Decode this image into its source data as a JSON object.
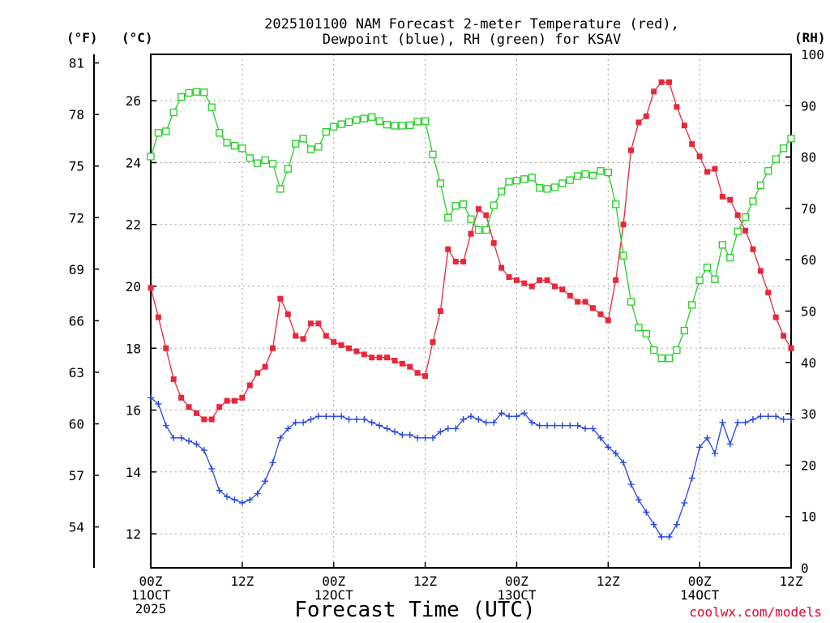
{
  "chart_data": {
    "type": "line",
    "title_lines": [
      "2025101100 NAM Forecast 2-meter Temperature (red),",
      "Dewpoint (blue), RH (green) for KSAV"
    ],
    "xlabel": "Forecast Time (UTC)",
    "credit": "coolwx.com/models",
    "units": {
      "fahrenheit": "(°F)",
      "celsius": "(°C)",
      "rh": "(RH)"
    },
    "x_range_hours": [
      0,
      84
    ],
    "x_ticks": [
      {
        "hour": 0,
        "lines": [
          "00Z",
          "11OCT",
          "2025"
        ]
      },
      {
        "hour": 12,
        "lines": [
          "12Z"
        ]
      },
      {
        "hour": 24,
        "lines": [
          "00Z",
          "12OCT"
        ]
      },
      {
        "hour": 36,
        "lines": [
          "12Z"
        ]
      },
      {
        "hour": 48,
        "lines": [
          "00Z",
          "13OCT"
        ]
      },
      {
        "hour": 60,
        "lines": [
          "12Z"
        ]
      },
      {
        "hour": 72,
        "lines": [
          "00Z",
          "14OCT"
        ]
      },
      {
        "hour": 84,
        "lines": [
          "12Z"
        ]
      }
    ],
    "celsius_range": [
      10.9,
      27.5
    ],
    "celsius_ticks": [
      12,
      14,
      16,
      18,
      20,
      22,
      24,
      26
    ],
    "fahrenheit_ticks": [
      54,
      57,
      60,
      63,
      66,
      69,
      72,
      75,
      78,
      81
    ],
    "rh_range": [
      0,
      100
    ],
    "rh_ticks": [
      0,
      10,
      20,
      30,
      40,
      50,
      60,
      70,
      80,
      90,
      100
    ],
    "series": [
      {
        "name": "Temperature",
        "unit": "C",
        "color": "#e8283a",
        "marker": "filled-square",
        "values": [
          19.95,
          19.0,
          18.0,
          17.0,
          16.4,
          16.1,
          15.9,
          15.7,
          15.7,
          16.1,
          16.3,
          16.3,
          16.4,
          16.8,
          17.2,
          17.4,
          18.0,
          19.6,
          19.1,
          18.4,
          18.3,
          18.8,
          18.8,
          18.4,
          18.2,
          18.1,
          18.0,
          17.9,
          17.8,
          17.7,
          17.7,
          17.7,
          17.6,
          17.5,
          17.4,
          17.2,
          17.1,
          18.2,
          19.2,
          21.2,
          20.8,
          20.8,
          21.7,
          22.5,
          22.3,
          21.4,
          20.6,
          20.3,
          20.2,
          20.1,
          20.0,
          20.2,
          20.2,
          20.0,
          19.9,
          19.7,
          19.5,
          19.5,
          19.3,
          19.1,
          18.9,
          20.2,
          22.0,
          24.4,
          25.3,
          25.5,
          26.3,
          26.6,
          26.6,
          25.8,
          25.2,
          24.6,
          24.2,
          23.7,
          23.8,
          22.9,
          22.8,
          22.3,
          21.8,
          21.2,
          20.5,
          19.8,
          19.0,
          18.4,
          18.0
        ]
      },
      {
        "name": "Dewpoint",
        "unit": "C",
        "color": "#2848e0",
        "marker": "plus",
        "values": [
          16.4,
          16.2,
          15.5,
          15.1,
          15.1,
          15.0,
          14.9,
          14.7,
          14.1,
          13.4,
          13.2,
          13.1,
          13.0,
          13.1,
          13.3,
          13.7,
          14.3,
          15.1,
          15.4,
          15.6,
          15.6,
          15.7,
          15.8,
          15.8,
          15.8,
          15.8,
          15.7,
          15.7,
          15.7,
          15.6,
          15.5,
          15.4,
          15.3,
          15.2,
          15.2,
          15.1,
          15.1,
          15.1,
          15.3,
          15.4,
          15.4,
          15.7,
          15.8,
          15.7,
          15.6,
          15.6,
          15.9,
          15.8,
          15.8,
          15.9,
          15.6,
          15.5,
          15.5,
          15.5,
          15.5,
          15.5,
          15.5,
          15.4,
          15.4,
          15.1,
          14.8,
          14.6,
          14.3,
          13.6,
          13.1,
          12.7,
          12.3,
          11.9,
          11.9,
          12.3,
          13.0,
          13.8,
          14.8,
          15.1,
          14.6,
          15.6,
          14.9,
          15.6,
          15.6,
          15.7,
          15.8,
          15.8,
          15.8,
          15.7,
          15.7
        ]
      },
      {
        "name": "RH",
        "unit": "%",
        "color": "#22d022",
        "marker": "open-square",
        "values": [
          80.1,
          84.7,
          85.0,
          88.7,
          91.7,
          92.5,
          92.7,
          92.6,
          89.7,
          84.7,
          82.8,
          82.2,
          81.7,
          79.8,
          78.8,
          79.4,
          78.7,
          73.8,
          77.7,
          82.6,
          83.6,
          81.5,
          82.0,
          84.9,
          85.9,
          86.4,
          86.8,
          87.2,
          87.5,
          87.8,
          87.0,
          86.3,
          86.1,
          86.1,
          86.2,
          86.9,
          87.0,
          80.5,
          74.9,
          68.2,
          70.5,
          70.8,
          67.9,
          65.8,
          65.8,
          70.6,
          73.3,
          75.2,
          75.4,
          75.7,
          76.0,
          74.0,
          73.8,
          74.1,
          74.9,
          75.5,
          76.3,
          76.7,
          76.4,
          77.3,
          77.0,
          70.8,
          60.8,
          51.8,
          46.8,
          45.6,
          42.4,
          40.8,
          40.8,
          42.4,
          46.2,
          51.2,
          56.0,
          58.5,
          56.2,
          62.9,
          60.4,
          65.5,
          68.3,
          71.4,
          74.5,
          77.3,
          79.6,
          81.7,
          83.6
        ]
      }
    ]
  }
}
